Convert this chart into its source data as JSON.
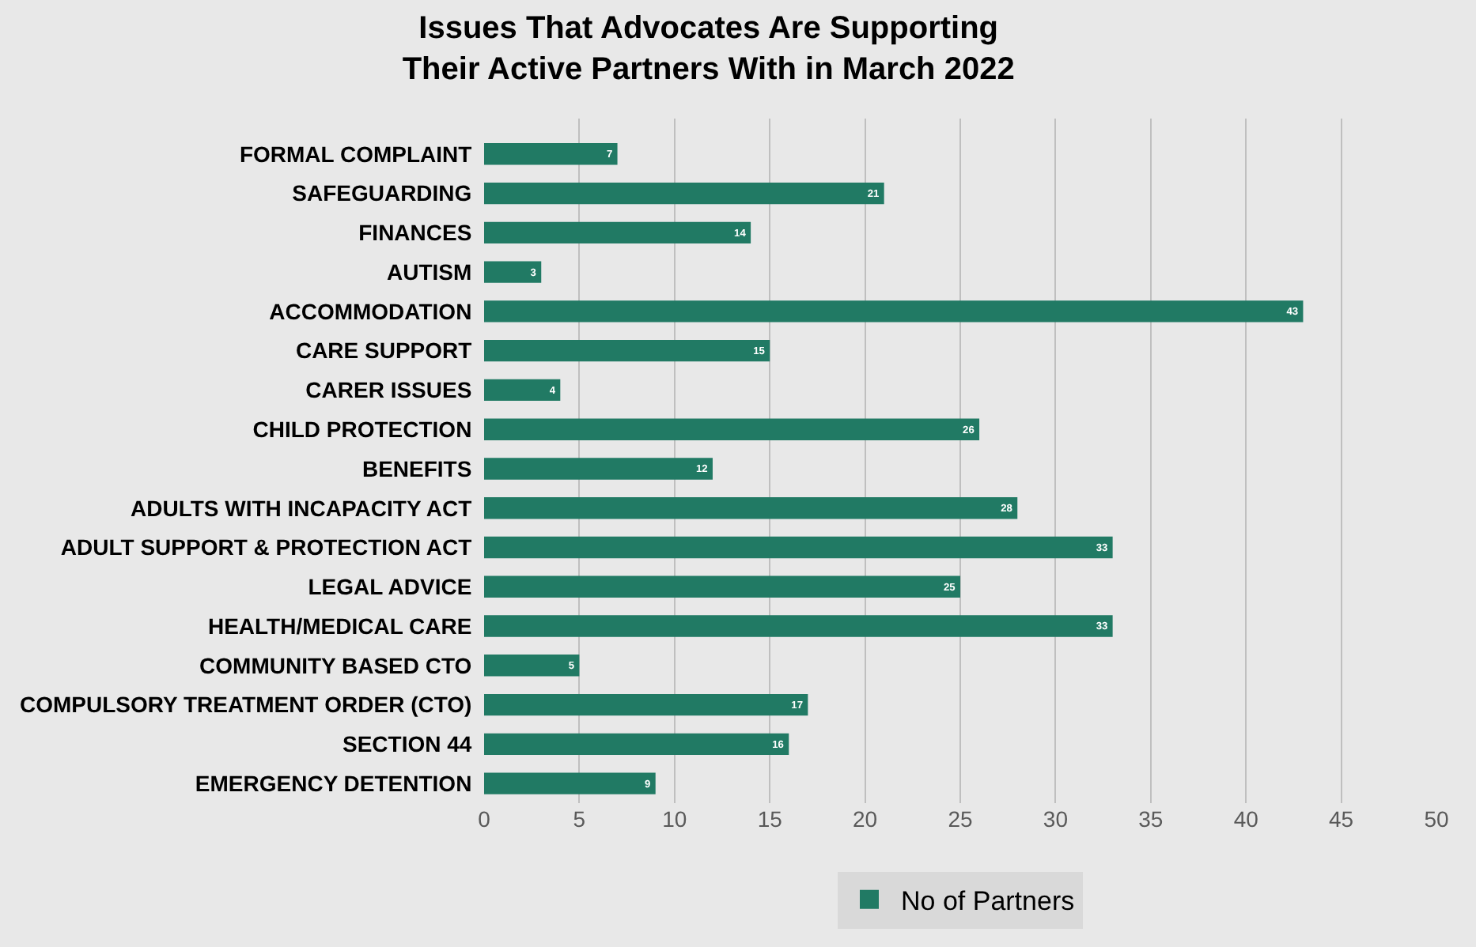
{
  "chart_data": {
    "type": "bar",
    "orientation": "horizontal",
    "title": "Issues That Advocates Are Supporting Their Active Partners With in March 2022",
    "categories": [
      "FORMAL COMPLAINT",
      "SAFEGUARDING",
      "FINANCES",
      "AUTISM",
      "ACCOMMODATION",
      "CARE SUPPORT",
      "CARER ISSUES",
      "CHILD PROTECTION",
      "BENEFITS",
      "ADULTS WITH INCAPACITY ACT",
      "ADULT SUPPORT & PROTECTION ACT",
      "LEGAL ADVICE",
      "HEALTH/MEDICAL CARE",
      "COMMUNITY BASED CTO",
      "COMPULSORY TREATMENT ORDER (CTO)",
      "SECTION 44",
      "EMERGENCY DETENTION"
    ],
    "series": [
      {
        "name": "No of Partners",
        "color": "#217a64",
        "values": [
          7,
          21,
          14,
          3,
          43,
          15,
          4,
          26,
          12,
          28,
          33,
          25,
          33,
          5,
          17,
          16,
          9
        ]
      }
    ],
    "xlim": [
      0,
      50
    ],
    "xticks": [
      0,
      5,
      10,
      15,
      20,
      25,
      30,
      35,
      40,
      45,
      50
    ],
    "grid": "x",
    "legend": "bottom",
    "data_labels": true
  }
}
